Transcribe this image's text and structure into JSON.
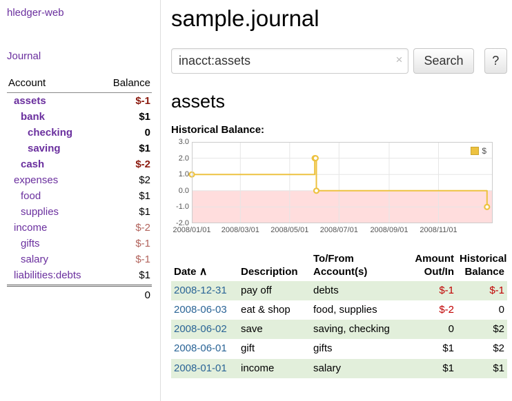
{
  "app": {
    "name": "hledger-web",
    "nav_journal": "Journal"
  },
  "header": {
    "title": "sample.journal"
  },
  "search": {
    "value": "inacct:assets",
    "clear_icon": "×",
    "button": "Search",
    "help_button": "?"
  },
  "sidebar": {
    "header": {
      "account": "Account",
      "balance": "Balance"
    },
    "accounts": [
      {
        "name": "assets",
        "balance": "$-1",
        "indent": 0,
        "bold": true,
        "negative": true
      },
      {
        "name": "bank",
        "balance": "$1",
        "indent": 1,
        "bold": true,
        "negative": false
      },
      {
        "name": "checking",
        "balance": "0",
        "indent": 2,
        "bold": true,
        "negative": false
      },
      {
        "name": "saving",
        "balance": "$1",
        "indent": 2,
        "bold": true,
        "negative": false
      },
      {
        "name": "cash",
        "balance": "$-2",
        "indent": 1,
        "bold": true,
        "negative": true
      },
      {
        "name": "expenses",
        "balance": "$2",
        "indent": 0,
        "bold": false,
        "negative": false
      },
      {
        "name": "food",
        "balance": "$1",
        "indent": 1,
        "bold": false,
        "negative": false
      },
      {
        "name": "supplies",
        "balance": "$1",
        "indent": 1,
        "bold": false,
        "negative": false
      },
      {
        "name": "income",
        "balance": "$-2",
        "indent": 0,
        "bold": false,
        "negative": true
      },
      {
        "name": "gifts",
        "balance": "$-1",
        "indent": 1,
        "bold": false,
        "negative": true
      },
      {
        "name": "salary",
        "balance": "$-1",
        "indent": 1,
        "bold": false,
        "negative": true
      },
      {
        "name": "liabilities:debts",
        "balance": "$1",
        "indent": 0,
        "bold": false,
        "negative": false
      }
    ],
    "total": "0"
  },
  "main": {
    "section_title": "assets",
    "chart_label": "Historical Balance:"
  },
  "chart_data": {
    "type": "line",
    "title": "Historical Balance",
    "legend": [
      {
        "label": "$",
        "color": "#EDC240"
      }
    ],
    "ylim": [
      -2,
      3
    ],
    "x_range_days": [
      0,
      372
    ],
    "y_ticks": [
      {
        "value": 3,
        "label": "3.0"
      },
      {
        "value": 2,
        "label": "2.0"
      },
      {
        "value": 1,
        "label": "1.0"
      },
      {
        "value": 0,
        "label": "0.0"
      },
      {
        "value": -1,
        "label": "-1.0"
      },
      {
        "value": -2,
        "label": "-2.0"
      }
    ],
    "x_ticks": [
      {
        "day": 0,
        "label": "2008/01/01"
      },
      {
        "day": 60,
        "label": "2008/03/01"
      },
      {
        "day": 121,
        "label": "2008/05/01"
      },
      {
        "day": 182,
        "label": "2008/07/01"
      },
      {
        "day": 244,
        "label": "2008/09/01"
      },
      {
        "day": 305,
        "label": "2008/11/01"
      }
    ],
    "series": [
      {
        "name": "$",
        "color": "#EDC240",
        "step": true,
        "points": [
          {
            "date": "2008-01-01",
            "day": 0,
            "value": 1
          },
          {
            "date": "2008-06-01",
            "day": 152,
            "value": 2
          },
          {
            "date": "2008-06-02",
            "day": 153,
            "value": 2
          },
          {
            "date": "2008-06-03",
            "day": 154,
            "value": 0
          },
          {
            "date": "2008-12-31",
            "day": 365,
            "value": -1
          }
        ]
      }
    ],
    "negative_region_color": "#ffdddd",
    "grid": true,
    "legend_position": "top-right"
  },
  "table": {
    "headers": {
      "date": "Date",
      "sort_icon": "∧",
      "description": "Description",
      "accounts_line1": "To/From",
      "accounts_line2": "Account(s)",
      "amount_line1": "Amount",
      "amount_line2": "Out/In",
      "balance_line1": "Historical",
      "balance_line2": "Balance"
    },
    "rows": [
      {
        "date": "2008-12-31",
        "description": "pay off",
        "accounts": "debts",
        "amount": "$-1",
        "balance": "$-1"
      },
      {
        "date": "2008-06-03",
        "description": "eat & shop",
        "accounts": "food, supplies",
        "amount": "$-2",
        "balance": "0"
      },
      {
        "date": "2008-06-02",
        "description": "save",
        "accounts": "saving, checking",
        "amount": "0",
        "balance": "$2"
      },
      {
        "date": "2008-06-01",
        "description": "gift",
        "accounts": "gifts",
        "amount": "$1",
        "balance": "$2"
      },
      {
        "date": "2008-01-01",
        "description": "income",
        "accounts": "salary",
        "amount": "$1",
        "balance": "$1"
      }
    ]
  },
  "colors": {
    "brand_purple": "#6a2f9e",
    "date_link_blue": "#2a6496",
    "negative_red": "#c00000",
    "sidebar_negative_bold": "#8b1a0e",
    "sidebar_negative": "#b2635c",
    "row_green": "#e2efdb",
    "chart_line_yellow": "#EDC240",
    "chart_negative_region": "#ffdddd",
    "axis_label_gray": "#545454"
  }
}
